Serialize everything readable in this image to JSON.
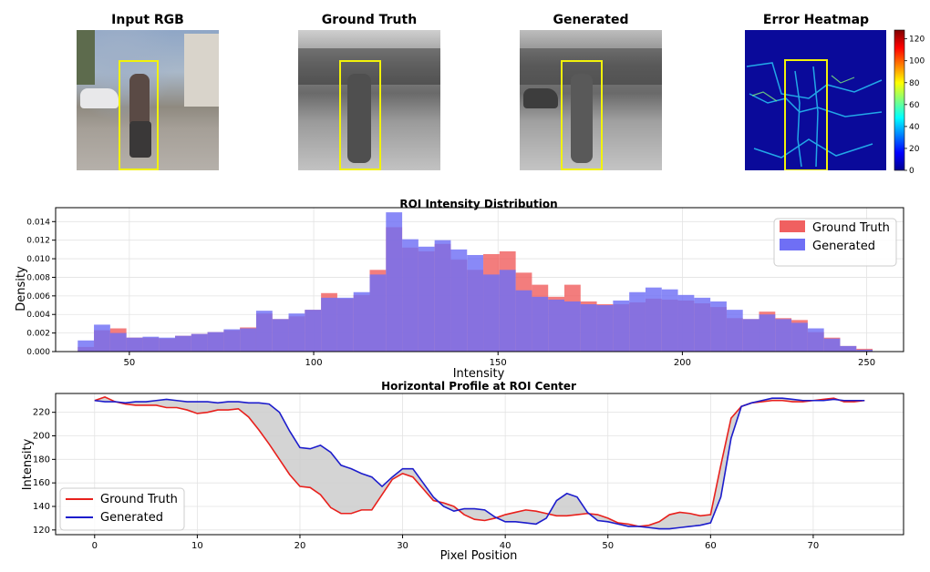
{
  "panels": [
    {
      "title": "Input RGB"
    },
    {
      "title": "Ground Truth"
    },
    {
      "title": "Generated"
    },
    {
      "title": "Error Heatmap"
    }
  ],
  "colorbar": {
    "ticks": [
      "0",
      "20",
      "40",
      "60",
      "80",
      "100",
      "120"
    ],
    "range": [
      0,
      128
    ],
    "colormap": "jet"
  },
  "colors": {
    "ground_truth": "#f06060",
    "generated": "#6f6ff5",
    "gt_line": "#e8201c",
    "gen_line": "#1c1ccc",
    "fill": "#cccccc",
    "roi": "#f2f20a"
  },
  "chart_data": [
    {
      "type": "bar",
      "title": "ROI Intensity Distribution",
      "xlabel": "Intensity",
      "ylabel": "Density",
      "xlim": [
        30,
        260
      ],
      "ylim": [
        0,
        0.0155
      ],
      "xticks": [
        50,
        100,
        150,
        200,
        250
      ],
      "yticks": [
        0.0,
        0.002,
        0.004,
        0.006,
        0.008,
        0.01,
        0.012,
        0.014
      ],
      "bin_width": 4.4,
      "grid": true,
      "legend_position": "top-right",
      "bin_starts": [
        36.0,
        40.4,
        44.8,
        49.2,
        53.6,
        58.0,
        62.4,
        66.8,
        71.2,
        75.6,
        80.0,
        84.4,
        88.8,
        93.2,
        97.6,
        102.0,
        106.4,
        110.8,
        115.2,
        119.6,
        124.0,
        128.4,
        132.8,
        137.2,
        141.6,
        146.0,
        150.4,
        154.8,
        159.2,
        163.6,
        168.0,
        172.4,
        176.8,
        181.2,
        185.6,
        190.0,
        194.4,
        198.8,
        203.2,
        207.6,
        212.0,
        216.4,
        220.8,
        225.2,
        229.6,
        234.0,
        238.4,
        242.8,
        247.2
      ],
      "series": [
        {
          "name": "Ground Truth",
          "values": [
            0.0005,
            0.0023,
            0.0025,
            0.0015,
            0.0015,
            0.0014,
            0.0017,
            0.0019,
            0.0021,
            0.0023,
            0.0026,
            0.0041,
            0.0035,
            0.0038,
            0.0045,
            0.0063,
            0.0057,
            0.0061,
            0.0088,
            0.0134,
            0.0112,
            0.0108,
            0.0116,
            0.0099,
            0.0088,
            0.0105,
            0.0108,
            0.0085,
            0.0072,
            0.0059,
            0.0072,
            0.0054,
            0.0051,
            0.0051,
            0.0053,
            0.0057,
            0.0056,
            0.0055,
            0.0052,
            0.0048,
            0.0036,
            0.0035,
            0.0043,
            0.0036,
            0.0034,
            0.0021,
            0.0015,
            0.0006,
            0.0003
          ]
        },
        {
          "name": "Generated",
          "values": [
            0.0012,
            0.0029,
            0.002,
            0.0015,
            0.0016,
            0.0015,
            0.0017,
            0.0019,
            0.0021,
            0.0024,
            0.0025,
            0.0044,
            0.0035,
            0.0041,
            0.0045,
            0.0058,
            0.0058,
            0.0064,
            0.0083,
            0.015,
            0.0121,
            0.0113,
            0.012,
            0.011,
            0.0104,
            0.0083,
            0.0088,
            0.0066,
            0.0059,
            0.0056,
            0.0054,
            0.0051,
            0.005,
            0.0055,
            0.0064,
            0.0069,
            0.0067,
            0.0061,
            0.0058,
            0.0054,
            0.0045,
            0.0035,
            0.004,
            0.0035,
            0.0031,
            0.0025,
            0.0014,
            0.0006,
            0.0002
          ]
        }
      ]
    },
    {
      "type": "line",
      "title": "Horizontal Profile at ROI Center",
      "xlabel": "Pixel Position",
      "ylabel": "Intensity",
      "xlim": [
        -3.8,
        78.8
      ],
      "ylim": [
        116,
        236
      ],
      "xticks": [
        0,
        10,
        20,
        30,
        40,
        50,
        60,
        70
      ],
      "yticks": [
        120,
        140,
        160,
        180,
        200,
        220
      ],
      "grid": true,
      "legend_position": "bottom-left",
      "x": [
        0,
        1,
        2,
        3,
        4,
        5,
        6,
        7,
        8,
        9,
        10,
        11,
        12,
        13,
        14,
        15,
        16,
        17,
        18,
        19,
        20,
        21,
        22,
        23,
        24,
        25,
        26,
        27,
        28,
        29,
        30,
        31,
        32,
        33,
        34,
        35,
        36,
        37,
        38,
        39,
        40,
        41,
        42,
        43,
        44,
        45,
        46,
        47,
        48,
        49,
        50,
        51,
        52,
        53,
        54,
        55,
        56,
        57,
        58,
        59,
        60,
        61,
        62,
        63,
        64,
        65,
        66,
        67,
        68,
        69,
        70,
        71,
        72,
        73,
        74,
        75
      ],
      "series": [
        {
          "name": "Ground Truth",
          "values": [
            230,
            233,
            229,
            227,
            226,
            226,
            226,
            224,
            224,
            222,
            219,
            220,
            222,
            222,
            223,
            216,
            205,
            193,
            180,
            167,
            157,
            156,
            150,
            139,
            134,
            134,
            137,
            137,
            150,
            163,
            168,
            165,
            155,
            145,
            143,
            140,
            133,
            129,
            128,
            130,
            133,
            135,
            137,
            136,
            134,
            132,
            132,
            133,
            134,
            133,
            130,
            126,
            125,
            123,
            124,
            127,
            133,
            135,
            134,
            132,
            133,
            175,
            215,
            225,
            228,
            229,
            230,
            230,
            229,
            229,
            230,
            231,
            232,
            229,
            229,
            230
          ]
        },
        {
          "name": "Generated",
          "values": [
            230,
            229,
            229,
            228,
            229,
            229,
            230,
            231,
            230,
            229,
            229,
            229,
            228,
            229,
            229,
            228,
            228,
            227,
            220,
            204,
            190,
            189,
            192,
            186,
            175,
            172,
            168,
            165,
            157,
            165,
            172,
            172,
            160,
            148,
            140,
            136,
            138,
            138,
            137,
            131,
            127,
            127,
            126,
            125,
            130,
            145,
            151,
            148,
            135,
            128,
            127,
            125,
            123,
            123,
            122,
            121,
            121,
            122,
            123,
            124,
            126,
            148,
            198,
            225,
            228,
            230,
            232,
            232,
            231,
            230,
            230,
            230,
            231,
            230,
            230,
            230
          ]
        }
      ]
    }
  ]
}
